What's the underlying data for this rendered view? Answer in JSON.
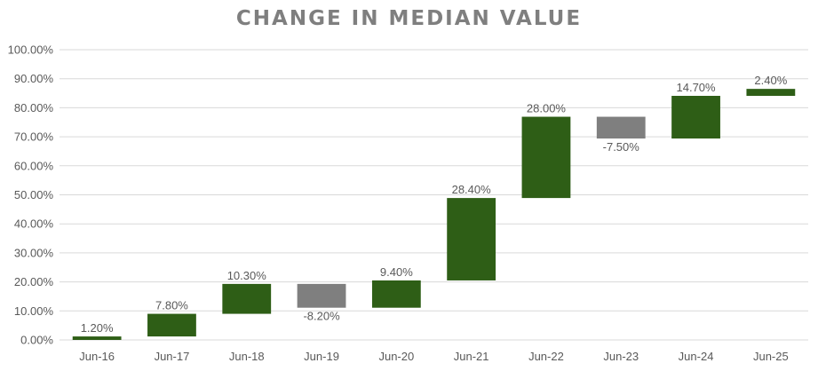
{
  "chart_data": {
    "type": "waterfall",
    "title": "CHANGE IN MEDIAN VALUE",
    "xlabel": "",
    "ylabel": "",
    "categories": [
      "Jun-16",
      "Jun-17",
      "Jun-18",
      "Jun-19",
      "Jun-20",
      "Jun-21",
      "Jun-22",
      "Jun-23",
      "Jun-24",
      "Jun-25"
    ],
    "values": [
      1.2,
      7.8,
      10.3,
      -8.2,
      9.4,
      28.4,
      28.0,
      -7.5,
      14.7,
      2.4
    ],
    "data_labels": [
      "1.20%",
      "7.80%",
      "10.30%",
      "-8.20%",
      "9.40%",
      "28.40%",
      "28.00%",
      "-7.50%",
      "14.70%",
      "2.40%"
    ],
    "y_ticks": [
      "0.00%",
      "10.00%",
      "20.00%",
      "30.00%",
      "40.00%",
      "50.00%",
      "60.00%",
      "70.00%",
      "80.00%",
      "90.00%",
      "100.00%"
    ],
    "ylim": [
      0,
      100
    ],
    "grid": true,
    "legend": "none",
    "colors": {
      "increase": "#2e5e16",
      "decrease": "#7f7f7f"
    }
  }
}
